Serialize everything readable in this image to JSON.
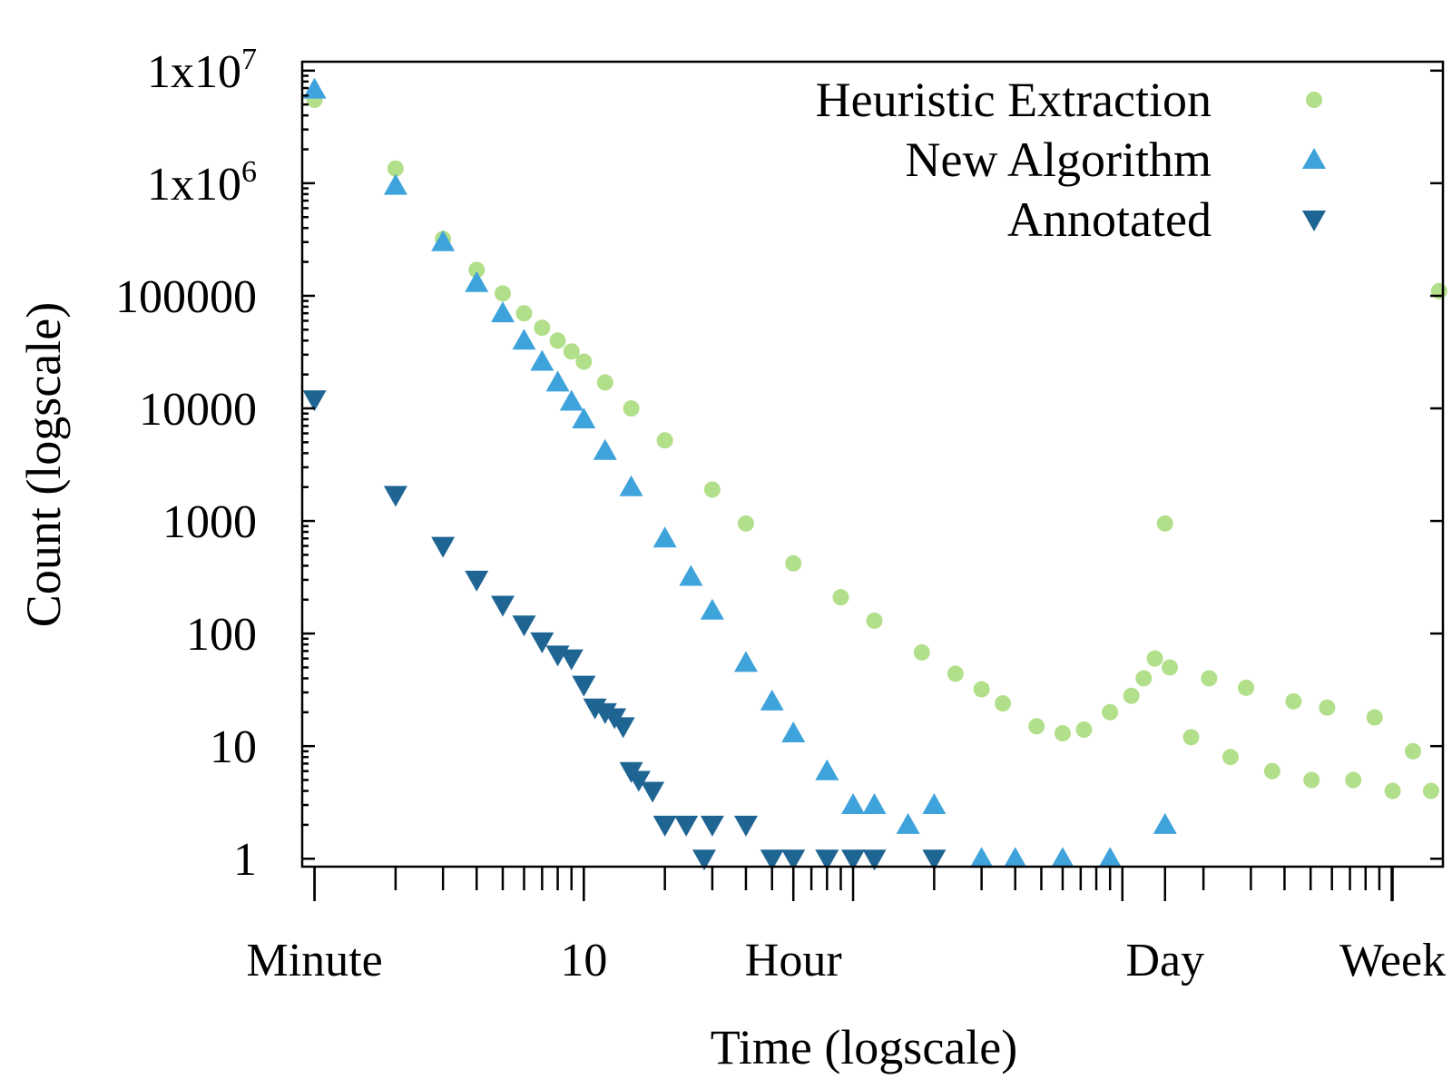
{
  "chart_data": {
    "type": "scatter",
    "xscale": "log",
    "yscale": "log",
    "x_unit": "minutes",
    "xlabel": "Time (logscale)",
    "ylabel": "Count (logscale)",
    "xlim": [
      0.9,
      15500
    ],
    "ylim": [
      0.85,
      12000000
    ],
    "grid": false,
    "legend_position": "top-right",
    "x_tick_labels": [
      {
        "value": 1,
        "label": "Minute"
      },
      {
        "value": 10,
        "label": "10"
      },
      {
        "value": 60,
        "label": "Hour"
      },
      {
        "value": 1440,
        "label": "Day"
      },
      {
        "value": 10080,
        "label": "Week"
      }
    ],
    "y_tick_labels": [
      {
        "value": 1,
        "label": "1"
      },
      {
        "value": 10,
        "label": "10"
      },
      {
        "value": 100,
        "label": "100"
      },
      {
        "value": 1000,
        "label": "1000"
      },
      {
        "value": 10000,
        "label": "10000"
      },
      {
        "value": 100000,
        "label": "100000"
      },
      {
        "value": 1000000,
        "label": "1x10",
        "sup": "6"
      },
      {
        "value": 10000000,
        "label": "1x10",
        "sup": "7"
      }
    ],
    "series": [
      {
        "name": "Heuristic Extraction",
        "marker": "circle",
        "color": "#b2df8a",
        "x": [
          1,
          2,
          3,
          4,
          5,
          6,
          7,
          8,
          9,
          10,
          12,
          15,
          20,
          30,
          40,
          60,
          90,
          120,
          180,
          240,
          300,
          360,
          480,
          600,
          720,
          900,
          1080,
          1200,
          1320,
          1440,
          1500,
          1800,
          2100,
          2520,
          2880,
          3600,
          4320,
          5040,
          5760,
          7200,
          8640,
          10080,
          12000,
          14000,
          15000
        ],
        "y": [
          5500000,
          1350000,
          320000,
          170000,
          105000,
          70000,
          52000,
          40000,
          32000,
          26000,
          17000,
          10000,
          5200,
          1900,
          950,
          420,
          210,
          130,
          68,
          44,
          32,
          24,
          15,
          13,
          14,
          20,
          28,
          40,
          60,
          950,
          50,
          12,
          40,
          8,
          33,
          6,
          25,
          5,
          22,
          5,
          18,
          4,
          9,
          4,
          110000
        ]
      },
      {
        "name": "New Algorithm",
        "marker": "triangle-up",
        "color": "#3fa3db",
        "x": [
          1,
          2,
          3,
          4,
          5,
          6,
          7,
          8,
          9,
          10,
          12,
          15,
          20,
          25,
          30,
          40,
          50,
          60,
          80,
          100,
          120,
          160,
          200,
          300,
          400,
          600,
          900,
          1440
        ],
        "y": [
          6800000,
          950000,
          300000,
          130000,
          70000,
          40000,
          26000,
          17000,
          11500,
          8000,
          4200,
          2000,
          700,
          320,
          160,
          55,
          25,
          13,
          6,
          3,
          3,
          2,
          3,
          1,
          1,
          1,
          1,
          2
        ]
      },
      {
        "name": "Annotated",
        "marker": "triangle-down",
        "color": "#1f6593",
        "x": [
          1,
          2,
          3,
          4,
          5,
          6,
          7,
          8,
          9,
          10,
          11,
          12,
          13,
          14,
          15,
          16,
          18,
          20,
          24,
          28,
          30,
          40,
          50,
          60,
          80,
          100,
          120,
          200
        ],
        "y": [
          12000,
          1700,
          600,
          300,
          180,
          120,
          85,
          65,
          60,
          35,
          22,
          20,
          18,
          15,
          6,
          5,
          4,
          2,
          2,
          1,
          2,
          2,
          1,
          1,
          1,
          1,
          1,
          1
        ]
      }
    ]
  }
}
